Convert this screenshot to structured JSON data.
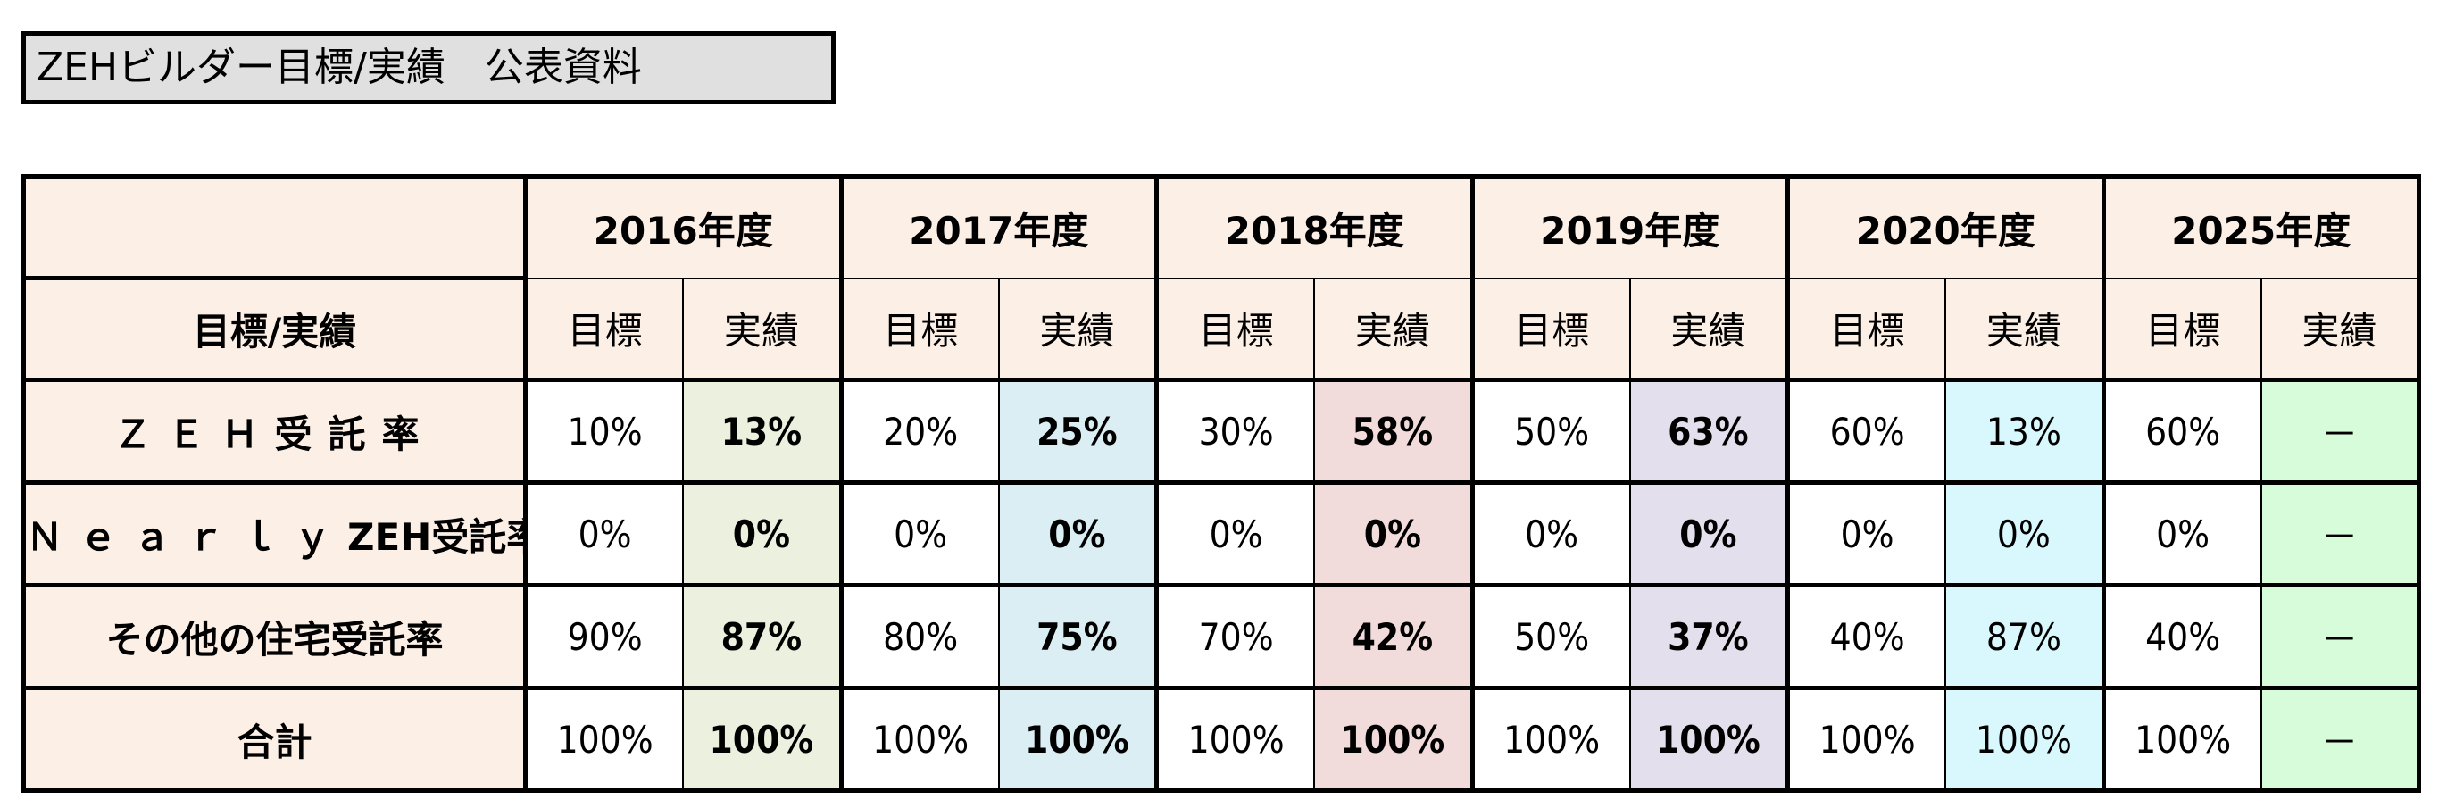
{
  "title": "ZEHビルダー目標/実績　公表資料",
  "header": {
    "years": [
      "2016年度",
      "2017年度",
      "2018年度",
      "2019年度",
      "2020年度",
      "2025年度"
    ],
    "row_label": "目標/実績",
    "target_label": "目標",
    "actual_label": "実績"
  },
  "colors": {
    "header_bg": "#fcefe6",
    "actual_2016": "#ebf1de",
    "actual_2017": "#daeef3",
    "actual_2018": "#f2dcdb",
    "actual_2019": "#e4dfec",
    "actual_2020": "#d9f8fd",
    "actual_2025": "#d7fcd9"
  },
  "rows": [
    {
      "label": "ＺＥＨ受託率",
      "cells": [
        "10%",
        "13%",
        "20%",
        "25%",
        "30%",
        "58%",
        "50%",
        "63%",
        "60%",
        "13%",
        "60%",
        "－"
      ]
    },
    {
      "label_a": "Ｎｅａｒｌｙ",
      "label_b": "ZEH受託率",
      "cells": [
        "0%",
        "0%",
        "0%",
        "0%",
        "0%",
        "0%",
        "0%",
        "0%",
        "0%",
        "0%",
        "0%",
        "－"
      ]
    },
    {
      "label": "その他の住宅受託率",
      "cells": [
        "90%",
        "87%",
        "80%",
        "75%",
        "70%",
        "42%",
        "50%",
        "37%",
        "40%",
        "87%",
        "40%",
        "－"
      ]
    },
    {
      "label": "合計",
      "cells": [
        "100%",
        "100%",
        "100%",
        "100%",
        "100%",
        "100%",
        "100%",
        "100%",
        "100%",
        "100%",
        "100%",
        "－"
      ]
    }
  ]
}
